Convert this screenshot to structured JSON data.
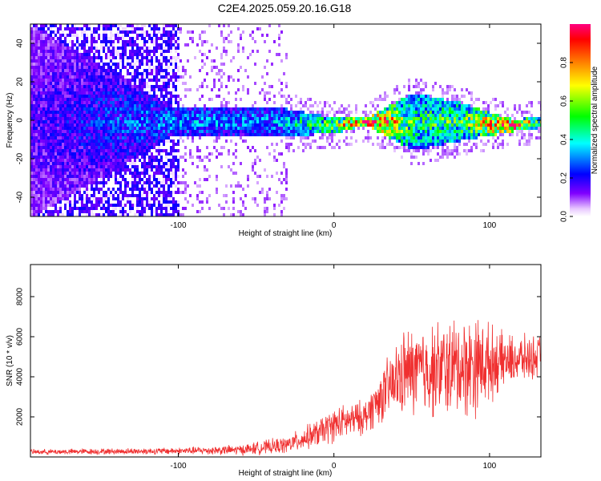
{
  "title": "C2E4.2025.059.20.16.G18",
  "chart_data": [
    {
      "type": "heatmap",
      "xlabel": "Height of straight line (km)",
      "ylabel": "Frequency (Hz)",
      "xlim": [
        -195,
        133
      ],
      "ylim": [
        -50,
        50
      ],
      "xticks": [
        -100,
        0,
        100
      ],
      "xtick_labels": [
        "-100",
        "0",
        "100"
      ],
      "yticks": [
        -40,
        -20,
        0,
        20,
        40
      ],
      "ytick_labels": [
        "-40",
        "-20",
        "0",
        "20",
        "40"
      ],
      "colorbar": {
        "label": "Normalized spectral amplitude",
        "range": [
          0,
          1
        ],
        "ticks": [
          0.0,
          0.2,
          0.4,
          0.6,
          0.8
        ],
        "tick_labels": [
          "0.0",
          "0.2",
          "0.4",
          "0.6",
          "0.8"
        ]
      },
      "description_profile": [
        {
          "x": -195,
          "center": 0,
          "halfwidth": 50,
          "amp": 0.15
        },
        {
          "x": -105,
          "center": 0,
          "halfwidth": 8,
          "amp": 0.3
        },
        {
          "x": -40,
          "center": 0,
          "halfwidth": 8,
          "amp": 0.3
        },
        {
          "x": 0,
          "center": -2,
          "halfwidth": 4,
          "amp": 0.55
        },
        {
          "x": 20,
          "center": 0,
          "halfwidth": 2,
          "amp": 0.95
        },
        {
          "x": 50,
          "center": 0,
          "halfwidth": 15,
          "amp": 0.45
        },
        {
          "x": 80,
          "center": 0,
          "halfwidth": 10,
          "amp": 0.5
        },
        {
          "x": 115,
          "center": -2,
          "halfwidth": 3,
          "amp": 0.9
        },
        {
          "x": 133,
          "center": 0,
          "halfwidth": 3,
          "amp": 0.5
        }
      ]
    },
    {
      "type": "line",
      "xlabel": "Height of straight line (km)",
      "ylabel": "SNR (10 * v/v)",
      "xlim": [
        -195,
        133
      ],
      "ylim": [
        0,
        9600
      ],
      "xticks": [
        -100,
        0,
        100
      ],
      "xtick_labels": [
        "-100",
        "0",
        "100"
      ],
      "yticks": [
        2000,
        4000,
        6000,
        8000
      ],
      "ytick_labels": [
        "2000",
        "4000",
        "6000",
        "8000"
      ],
      "color": "#f03030",
      "envelope": [
        {
          "x": -195,
          "mean": 250,
          "spread": 150
        },
        {
          "x": -100,
          "mean": 300,
          "spread": 200
        },
        {
          "x": -60,
          "mean": 350,
          "spread": 300
        },
        {
          "x": -30,
          "mean": 600,
          "spread": 500
        },
        {
          "x": -10,
          "mean": 1200,
          "spread": 800
        },
        {
          "x": 0,
          "mean": 1600,
          "spread": 1000
        },
        {
          "x": 20,
          "mean": 2000,
          "spread": 1000
        },
        {
          "x": 30,
          "mean": 3000,
          "spread": 1500
        },
        {
          "x": 45,
          "mean": 4200,
          "spread": 2500
        },
        {
          "x": 70,
          "mean": 4400,
          "spread": 2800
        },
        {
          "x": 90,
          "mean": 4600,
          "spread": 3000
        },
        {
          "x": 110,
          "mean": 4800,
          "spread": 1500
        },
        {
          "x": 133,
          "mean": 5000,
          "spread": 1200
        }
      ]
    }
  ]
}
